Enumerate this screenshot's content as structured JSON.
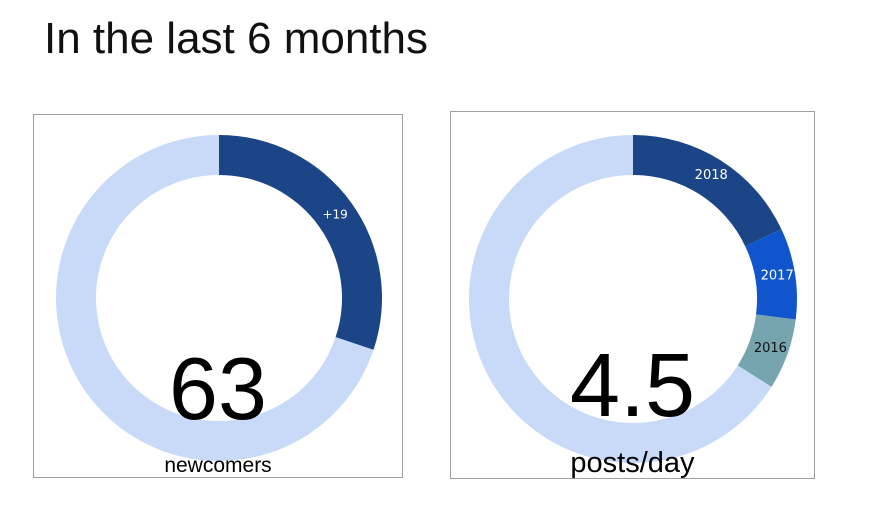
{
  "title": "In the last 6 months",
  "chart_data": [
    {
      "type": "pie",
      "center_value": "63",
      "center_label": "newcomers",
      "total": 63,
      "slices": [
        {
          "label": "+19",
          "value": 19,
          "color": "#1c4587"
        },
        {
          "label": "",
          "value": 44,
          "color": "#c9daf8"
        }
      ]
    },
    {
      "type": "pie",
      "center_value": "4.5",
      "center_label": "posts/day",
      "slices": [
        {
          "label": "2018",
          "value": 18,
          "color": "#1c4587"
        },
        {
          "label": "2017",
          "value": 9,
          "color": "#1155cc"
        },
        {
          "label": "2016",
          "value": 7,
          "color": "#76a5af"
        },
        {
          "label": "",
          "value": 66,
          "color": "#c9daf8"
        }
      ]
    }
  ]
}
